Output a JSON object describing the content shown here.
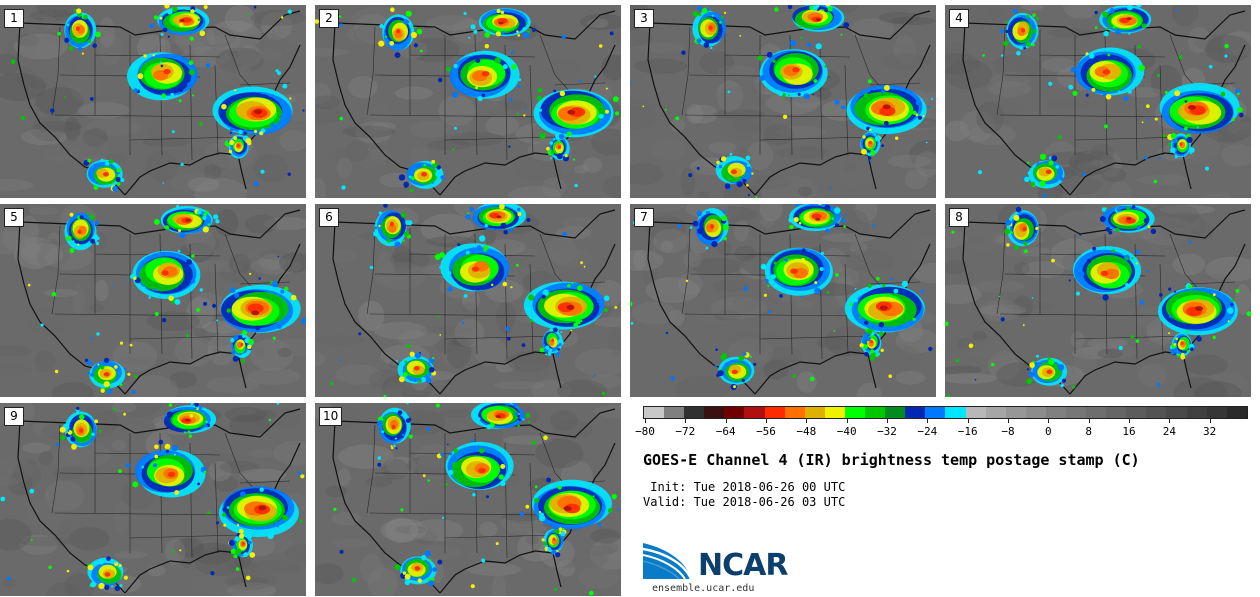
{
  "panels": [
    "1",
    "2",
    "3",
    "4",
    "5",
    "6",
    "7",
    "8",
    "9",
    "10"
  ],
  "colorbar": {
    "colors": [
      "#c8c8c8",
      "#7f7f7f",
      "#303030",
      "#3a1010",
      "#700000",
      "#b01010",
      "#ff2a00",
      "#ff7000",
      "#e0b000",
      "#f0f000",
      "#00ff00",
      "#00c800",
      "#008c1e",
      "#0028b4",
      "#0078ff",
      "#00e6ff",
      "#b8b8b8",
      "#a6a6a6",
      "#979797",
      "#8c8c8c",
      "#808080",
      "#777777",
      "#6e6e6e",
      "#656565",
      "#5c5c5c",
      "#535353",
      "#4a4a4a",
      "#404040",
      "#363636",
      "#2a2a2a"
    ],
    "ticks": [
      "−80",
      "−72",
      "−64",
      "−56",
      "−48",
      "−40",
      "−32",
      "−24",
      "−16",
      "−8",
      "0",
      "8",
      "16",
      "24",
      "32"
    ]
  },
  "title": "GOES-E Channel 4 (IR) brightness temp postage stamp (C)",
  "init": " Init: Tue 2018-06-26 00 UTC",
  "valid": "Valid: Tue 2018-06-26 03 UTC",
  "logo_text": "NCAR",
  "website": "ensemble.ucar.edu",
  "colors": {
    "land": "#6a6a6a",
    "boundary": "#111111",
    "logo_blue": "#0d3f6e",
    "logo_light": "#3f9fd8"
  }
}
